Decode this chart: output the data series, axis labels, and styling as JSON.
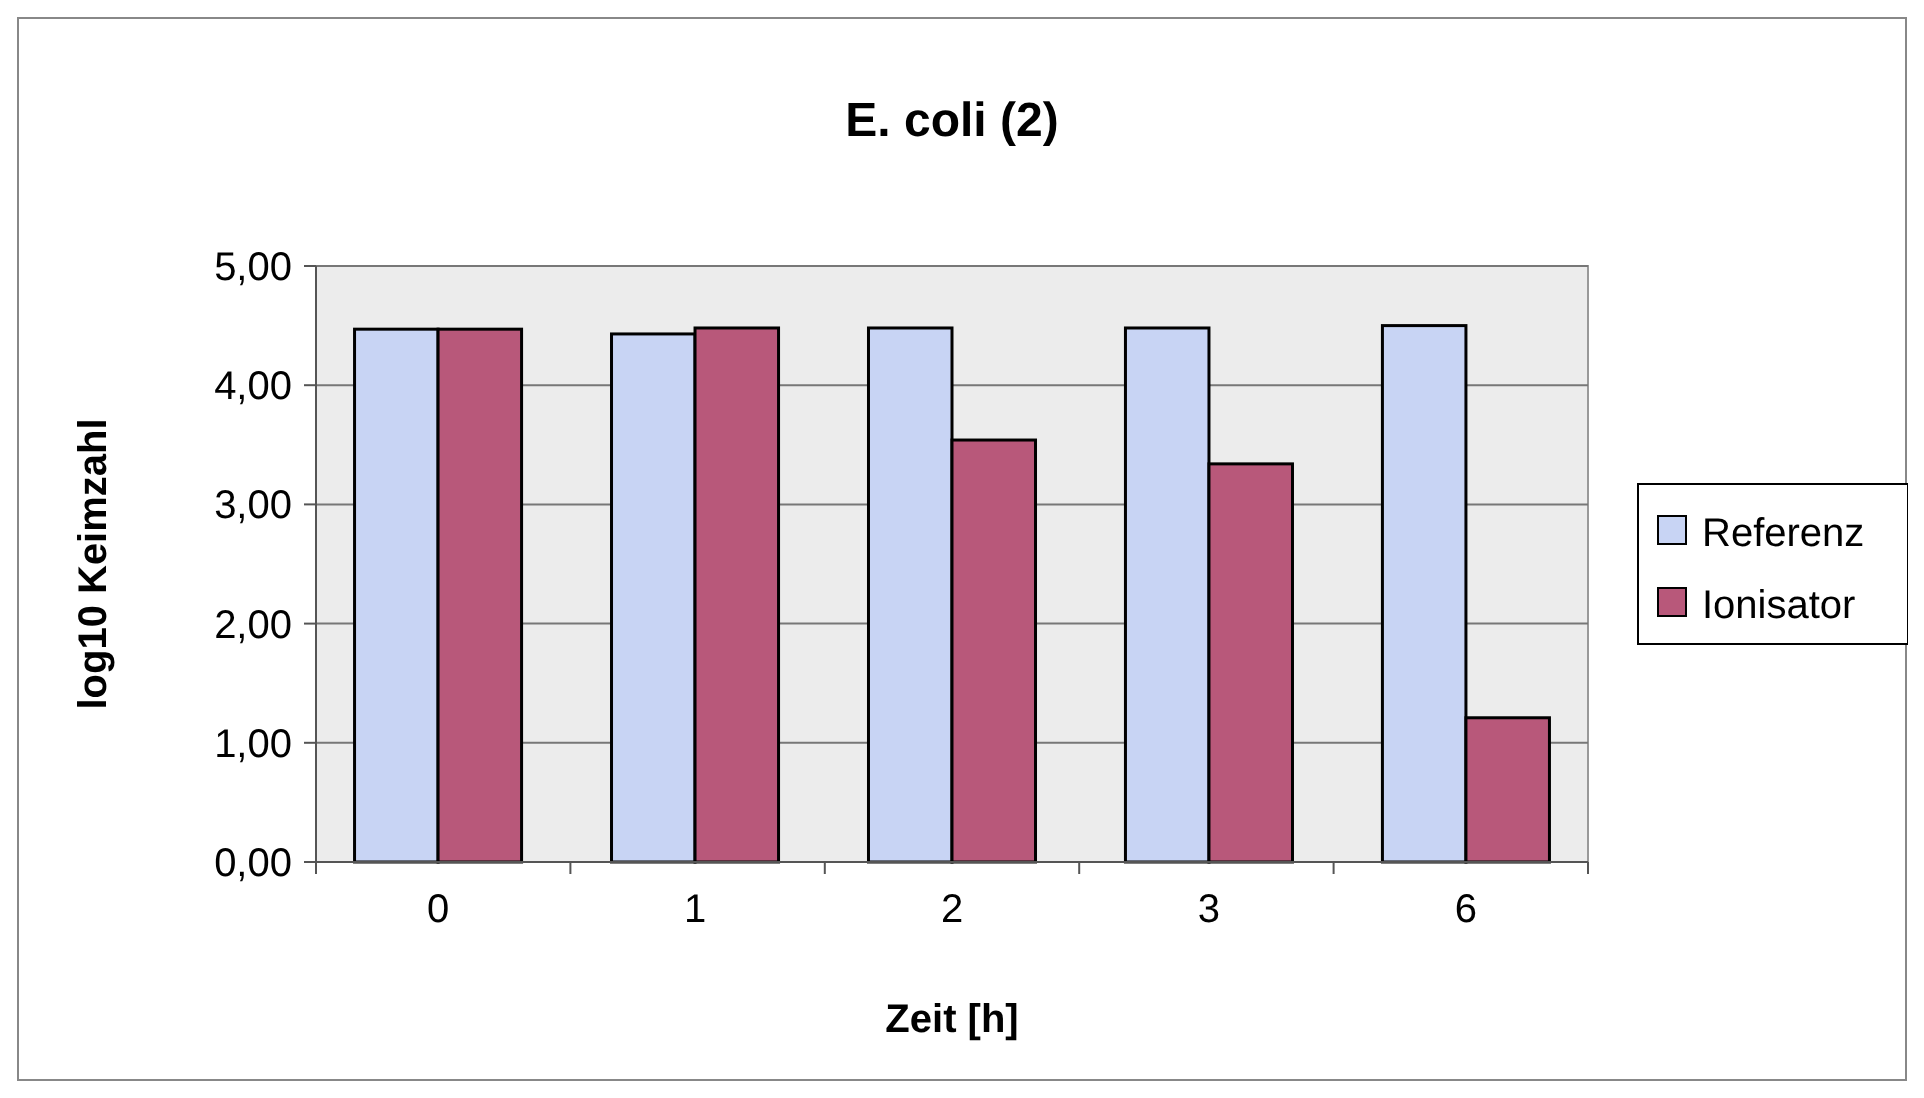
{
  "chart_data": {
    "type": "bar",
    "title": "E. coli (2)",
    "xlabel": "Zeit [h]",
    "ylabel": "log10 Keimzahl",
    "categories": [
      "0",
      "1",
      "2",
      "3",
      "6"
    ],
    "series": [
      {
        "name": "Referenz",
        "color": "#c8d4f4",
        "values": [
          4.47,
          4.43,
          4.48,
          4.48,
          4.5
        ]
      },
      {
        "name": "Ionisator",
        "color": "#b8587a",
        "values": [
          4.47,
          4.48,
          3.54,
          3.34,
          1.21
        ]
      }
    ],
    "ylim": [
      0,
      5
    ],
    "yticks": [
      {
        "value": 0,
        "label": "0,00"
      },
      {
        "value": 1,
        "label": "1,00"
      },
      {
        "value": 2,
        "label": "2,00"
      },
      {
        "value": 3,
        "label": "3,00"
      },
      {
        "value": 4,
        "label": "4,00"
      },
      {
        "value": 5,
        "label": "5,00"
      }
    ],
    "grid": "y",
    "legend": "right"
  }
}
